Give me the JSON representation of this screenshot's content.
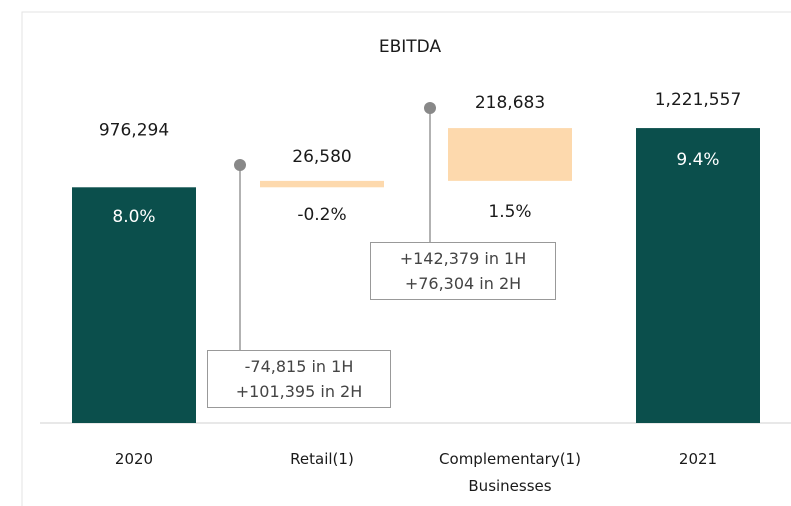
{
  "chart_data": {
    "type": "waterfall",
    "title": "EBITDA",
    "categories": [
      "2020",
      "Retail(1)",
      "Complementary(1) Businesses",
      "2021"
    ],
    "values": [
      976294,
      26580,
      218683,
      1221557
    ],
    "value_labels": [
      "976,294",
      "26,580",
      "218,683",
      "1,221,557"
    ],
    "kinds": [
      "total",
      "delta",
      "delta",
      "total"
    ],
    "margin_labels": [
      "8.0%",
      "-0.2%",
      "1.5%",
      "9.4%"
    ],
    "colors": {
      "total": "#0b4f4c",
      "delta": "#fdd9ad"
    },
    "ylim": [
      0,
      1400000
    ],
    "annotations": [
      {
        "category": 1,
        "lines": [
          "-74,815 in 1H",
          "+101,395 in 2H"
        ]
      },
      {
        "category": 2,
        "lines": [
          "+142,379 in 1H",
          "+76,304 in 2H"
        ]
      }
    ]
  }
}
